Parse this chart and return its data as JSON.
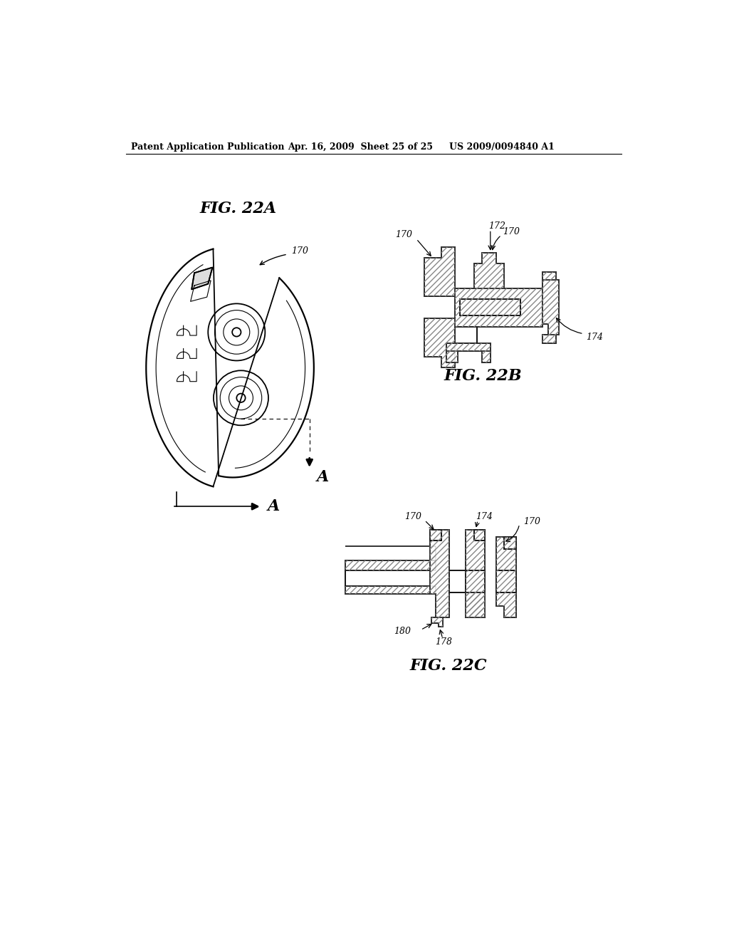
{
  "background_color": "#ffffff",
  "header_text": "Patent Application Publication",
  "header_date": "Apr. 16, 2009  Sheet 25 of 25",
  "header_patent": "US 2009/0094840 A1",
  "fig22a_label": "FIG. 22A",
  "fig22b_label": "FIG. 22B",
  "fig22c_label": "FIG. 22C",
  "label_170": "170",
  "label_172": "172",
  "label_174": "174",
  "label_178": "178",
  "label_180": "180",
  "label_A": "A",
  "line_color": "#000000",
  "hatch_color": "#777777"
}
